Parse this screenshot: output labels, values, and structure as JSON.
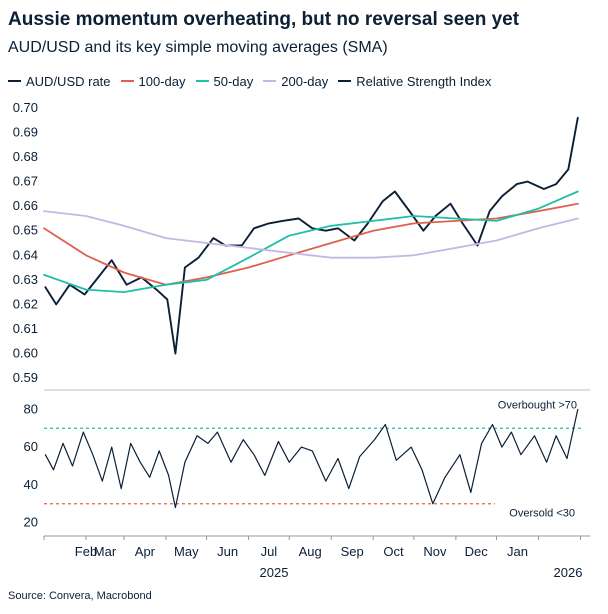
{
  "chart_data": {
    "type": "line",
    "title": "Aussie momentum overheating, but no reversal seen yet",
    "subtitle": "AUD/USD and its key simple moving averages (SMA)",
    "source": "Source: Convera, Macrobond",
    "legend": [
      {
        "name": "AUD/USD rate",
        "color": "#0b1f35"
      },
      {
        "name": "100-day",
        "color": "#e0604f"
      },
      {
        "name": "50-day",
        "color": "#1fbfa8"
      },
      {
        "name": "200-day",
        "color": "#c4b7e6"
      },
      {
        "name": "Relative Strength Index",
        "color": "#0b1f35"
      }
    ],
    "x_ticks": [
      "Feb",
      "Mar",
      "Apr",
      "May",
      "Jun",
      "Jul",
      "Aug",
      "Sep",
      "Oct",
      "Nov",
      "Dec",
      "Jan"
    ],
    "year_labels": [
      "2025",
      "2026"
    ],
    "panels": [
      {
        "ylim": [
          0.59,
          0.7
        ],
        "y_ticks": [
          "0.70",
          "0.69",
          "0.68",
          "0.67",
          "0.66",
          "0.65",
          "0.64",
          "0.63",
          "0.62",
          "0.61",
          "0.60",
          "0.59"
        ],
        "series": [
          {
            "name": "AUD/USD rate",
            "color": "#0b1f35",
            "x": [
              "2025-01-02",
              "2025-01-10",
              "2025-01-20",
              "2025-01-31",
              "2025-02-10",
              "2025-02-20",
              "2025-03-03",
              "2025-03-14",
              "2025-03-25",
              "2025-04-02",
              "2025-04-08",
              "2025-04-15",
              "2025-04-25",
              "2025-05-06",
              "2025-05-15",
              "2025-05-27",
              "2025-06-05",
              "2025-06-16",
              "2025-06-26",
              "2025-07-08",
              "2025-07-18",
              "2025-07-28",
              "2025-08-06",
              "2025-08-18",
              "2025-08-28",
              "2025-09-08",
              "2025-09-17",
              "2025-09-29",
              "2025-10-08",
              "2025-10-17",
              "2025-10-28",
              "2025-11-06",
              "2025-11-17",
              "2025-11-26",
              "2025-12-05",
              "2025-12-16",
              "2025-12-24",
              "2026-01-05",
              "2026-01-14",
              "2026-01-23",
              "2026-01-30"
            ],
            "values": [
              0.627,
              0.62,
              0.628,
              0.624,
              0.631,
              0.638,
              0.628,
              0.631,
              0.626,
              0.622,
              0.6,
              0.635,
              0.639,
              0.647,
              0.644,
              0.644,
              0.651,
              0.653,
              0.654,
              0.655,
              0.651,
              0.65,
              0.651,
              0.646,
              0.653,
              0.662,
              0.666,
              0.657,
              0.65,
              0.656,
              0.661,
              0.653,
              0.644,
              0.658,
              0.664,
              0.669,
              0.67,
              0.667,
              0.669,
              0.675,
              0.696
            ]
          },
          {
            "name": "100-day",
            "color": "#e0604f",
            "x": [
              "2025-01-01",
              "2025-02-01",
              "2025-03-01",
              "2025-04-01",
              "2025-05-01",
              "2025-06-01",
              "2025-07-01",
              "2025-08-01",
              "2025-09-01",
              "2025-10-01",
              "2025-11-01",
              "2025-12-01",
              "2026-01-01",
              "2026-01-30"
            ],
            "values": [
              0.651,
              0.64,
              0.633,
              0.628,
              0.631,
              0.635,
              0.64,
              0.645,
              0.65,
              0.653,
              0.654,
              0.655,
              0.658,
              0.661
            ]
          },
          {
            "name": "50-day",
            "color": "#1fbfa8",
            "x": [
              "2025-01-01",
              "2025-02-01",
              "2025-03-01",
              "2025-04-01",
              "2025-05-01",
              "2025-06-01",
              "2025-07-01",
              "2025-08-01",
              "2025-09-01",
              "2025-10-01",
              "2025-11-01",
              "2025-12-01",
              "2026-01-01",
              "2026-01-30"
            ],
            "values": [
              0.632,
              0.626,
              0.625,
              0.628,
              0.63,
              0.639,
              0.648,
              0.652,
              0.654,
              0.656,
              0.655,
              0.654,
              0.659,
              0.666
            ]
          },
          {
            "name": "200-day",
            "color": "#c4b7e6",
            "x": [
              "2025-01-01",
              "2025-02-01",
              "2025-03-01",
              "2025-04-01",
              "2025-05-01",
              "2025-06-01",
              "2025-07-01",
              "2025-08-01",
              "2025-09-01",
              "2025-10-01",
              "2025-11-01",
              "2025-12-01",
              "2026-01-01",
              "2026-01-30"
            ],
            "values": [
              0.658,
              0.656,
              0.652,
              0.647,
              0.645,
              0.643,
              0.641,
              0.639,
              0.639,
              0.64,
              0.643,
              0.646,
              0.651,
              0.655
            ]
          }
        ]
      },
      {
        "ylim": [
          15,
          85
        ],
        "y_ticks": [
          "80",
          "60",
          "40",
          "20"
        ],
        "series": [
          {
            "name": "Relative Strength Index",
            "color": "#0b1f35",
            "x": [
              "2025-01-02",
              "2025-01-08",
              "2025-01-15",
              "2025-01-22",
              "2025-01-30",
              "2025-02-06",
              "2025-02-13",
              "2025-02-20",
              "2025-02-27",
              "2025-03-06",
              "2025-03-13",
              "2025-03-20",
              "2025-03-27",
              "2025-04-03",
              "2025-04-08",
              "2025-04-15",
              "2025-04-24",
              "2025-05-02",
              "2025-05-09",
              "2025-05-19",
              "2025-05-28",
              "2025-06-05",
              "2025-06-13",
              "2025-06-23",
              "2025-07-01",
              "2025-07-10",
              "2025-07-18",
              "2025-07-28",
              "2025-08-06",
              "2025-08-14",
              "2025-08-22",
              "2025-09-02",
              "2025-09-10",
              "2025-09-18",
              "2025-09-29",
              "2025-10-07",
              "2025-10-15",
              "2025-10-24",
              "2025-11-04",
              "2025-11-12",
              "2025-11-20",
              "2025-11-28",
              "2025-12-05",
              "2025-12-12",
              "2025-12-19",
              "2025-12-29",
              "2026-01-07",
              "2026-01-14",
              "2026-01-22",
              "2026-01-30"
            ],
            "values": [
              56,
              48,
              62,
              50,
              68,
              56,
              42,
              60,
              38,
              62,
              52,
              44,
              58,
              45,
              28,
              52,
              66,
              62,
              68,
              52,
              64,
              56,
              45,
              63,
              52,
              60,
              58,
              42,
              54,
              38,
              55,
              64,
              72,
              53,
              60,
              48,
              30,
              44,
              56,
              36,
              62,
              72,
              60,
              68,
              56,
              66,
              52,
              66,
              54,
              80
            ]
          }
        ],
        "reference_lines": [
          {
            "value": 70,
            "label": "Overbought >70",
            "color": "#1fbfa8"
          },
          {
            "value": 30,
            "label": "Oversold <30",
            "color": "#e0604f"
          }
        ]
      }
    ],
    "grid": false
  }
}
